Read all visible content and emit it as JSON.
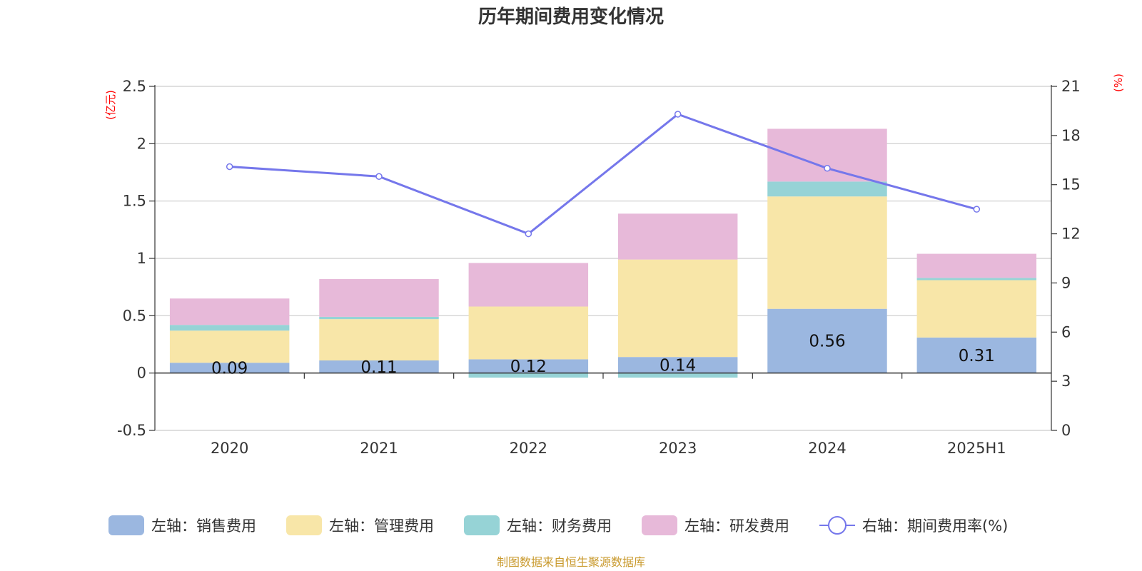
{
  "chart_data": {
    "type": "bar",
    "title": "历年期间费用变化情况",
    "left_unit": "(亿元)",
    "right_unit": "(%)",
    "categories": [
      "2020",
      "2021",
      "2022",
      "2023",
      "2024",
      "2025H1"
    ],
    "left_axis": {
      "min": -0.5,
      "max": 2.5,
      "ticks": [
        "-0.5",
        "0",
        "0.5",
        "1",
        "1.5",
        "2",
        "2.5"
      ]
    },
    "right_axis": {
      "min": 0,
      "max": 21,
      "ticks": [
        "0",
        "3",
        "6",
        "9",
        "12",
        "15",
        "18",
        "21"
      ]
    },
    "stacked_series": [
      {
        "name": "左轴：销售费用",
        "color": "#9bb7e0",
        "values": [
          0.09,
          0.11,
          0.12,
          0.14,
          0.56,
          0.31
        ],
        "labels": [
          "0.09",
          "0.11",
          "0.12",
          "0.14",
          "0.56",
          "0.31"
        ]
      },
      {
        "name": "左轴：管理费用",
        "color": "#f8e6a8",
        "values": [
          0.28,
          0.36,
          0.46,
          0.85,
          0.98,
          0.5
        ]
      },
      {
        "name": "左轴：财务费用",
        "color": "#96d3d6",
        "values": [
          0.05,
          0.02,
          -0.04,
          -0.04,
          0.13,
          0.02
        ]
      },
      {
        "name": "左轴：研发费用",
        "color": "#e7b9d9",
        "values": [
          0.23,
          0.33,
          0.38,
          0.4,
          0.46,
          0.21
        ]
      }
    ],
    "line_series": {
      "name": "右轴：期间费用率(%)",
      "color": "#7577eb",
      "values": [
        16.1,
        15.5,
        12.0,
        19.3,
        16.0,
        13.5
      ]
    },
    "grid": true,
    "legend_position": "bottom"
  },
  "source_text": "制图数据来自恒生聚源数据库"
}
